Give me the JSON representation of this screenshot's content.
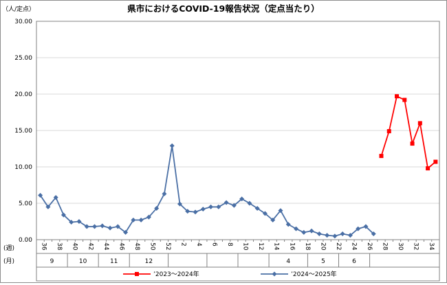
{
  "chart_data": {
    "type": "line",
    "title": "県市におけるCOVID-19報告状況（定点当たり）",
    "y_unit": "（人/定点）",
    "ylim": [
      0,
      30
    ],
    "y_ticks": [
      "0.00",
      "5.00",
      "10.00",
      "15.00",
      "20.00",
      "25.00",
      "30.00"
    ],
    "week_row_label": "(週)",
    "month_row_label": "(月)",
    "weeks": [
      "36",
      "37",
      "38",
      "39",
      "40",
      "41",
      "42",
      "43",
      "44",
      "45",
      "46",
      "47",
      "48",
      "49",
      "50",
      "51",
      "52",
      "1",
      "2",
      "3",
      "4",
      "5",
      "6",
      "7",
      "8",
      "9",
      "10",
      "11",
      "12",
      "13",
      "14",
      "15",
      "16",
      "17",
      "18",
      "19",
      "20",
      "21",
      "22",
      "23",
      "24",
      "25",
      "26",
      "27",
      "28",
      "29",
      "30",
      "31",
      "32",
      "33",
      "34",
      "35"
    ],
    "week_labels": [
      "36",
      "38",
      "40",
      "42",
      "44",
      "46",
      "48",
      "50",
      "52",
      "2",
      "4",
      "6",
      "8",
      "10",
      "12",
      "14",
      "16",
      "18",
      "20",
      "22",
      "24",
      "26",
      "28",
      "30",
      "32",
      "34"
    ],
    "months": [
      {
        "label": "9",
        "from": "36",
        "to": "39"
      },
      {
        "label": "10",
        "from": "40",
        "to": "43"
      },
      {
        "label": "11",
        "from": "44",
        "to": "47"
      },
      {
        "label": "12",
        "from": "48",
        "to": "52"
      },
      {
        "label": "",
        "from": "1",
        "to": "5"
      },
      {
        "label": "",
        "from": "6",
        "to": "9"
      },
      {
        "label": "",
        "from": "10",
        "to": "13"
      },
      {
        "label": "4",
        "from": "14",
        "to": "18"
      },
      {
        "label": "5",
        "from": "19",
        "to": "22"
      },
      {
        "label": "6",
        "from": "23",
        "to": "26"
      },
      {
        "label": "",
        "from": "27",
        "to": "35"
      }
    ],
    "legend_position": "bottom",
    "grid": true,
    "series": [
      {
        "name": "’2023～2024年",
        "color": "#ff0000",
        "marker": "square",
        "x": [
          "28",
          "29",
          "30",
          "31",
          "32",
          "33",
          "34",
          "35"
        ],
        "values": [
          11.5,
          14.9,
          19.7,
          19.2,
          13.2,
          16.0,
          9.8,
          10.7
        ]
      },
      {
        "name": "’2024～2025年",
        "color": "#4a6fa5",
        "marker": "diamond",
        "x": [
          "36",
          "37",
          "38",
          "39",
          "40",
          "41",
          "42",
          "43",
          "44",
          "45",
          "46",
          "47",
          "48",
          "49",
          "50",
          "51",
          "52",
          "1",
          "2",
          "3",
          "4",
          "5",
          "6",
          "7",
          "8",
          "9",
          "10",
          "11",
          "12",
          "13",
          "14",
          "15",
          "16",
          "17",
          "18",
          "19",
          "20",
          "21",
          "22",
          "23",
          "24",
          "25",
          "26",
          "27"
        ],
        "values": [
          6.1,
          4.5,
          5.8,
          3.4,
          2.4,
          2.5,
          1.8,
          1.8,
          1.9,
          1.6,
          1.8,
          1.0,
          2.7,
          2.7,
          3.1,
          4.3,
          6.3,
          12.9,
          4.9,
          3.9,
          3.8,
          4.2,
          4.5,
          4.5,
          5.1,
          4.7,
          5.6,
          5.0,
          4.3,
          3.6,
          2.7,
          4.0,
          2.1,
          1.5,
          1.0,
          1.2,
          0.8,
          0.6,
          0.5,
          0.8,
          0.6,
          1.5,
          1.8,
          0.8
        ]
      }
    ]
  }
}
